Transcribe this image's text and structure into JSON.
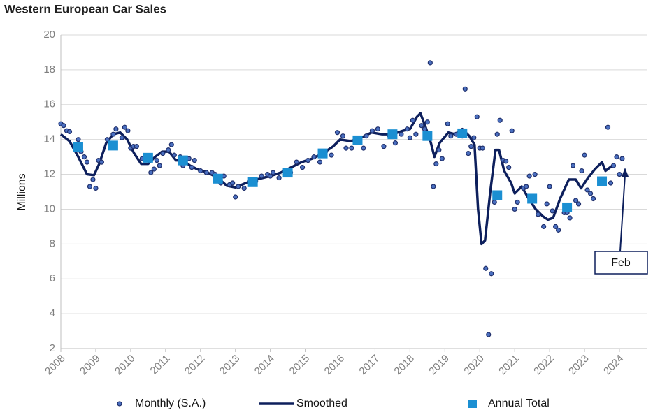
{
  "chart_data": {
    "type": "line",
    "title": "Western European Car Sales",
    "y_label": "Millions",
    "annotation": "Feb",
    "xlim": [
      2008,
      2024
    ],
    "xticks": [
      2008,
      2009,
      2010,
      2011,
      2012,
      2013,
      2014,
      2015,
      2016,
      2017,
      2018,
      2019,
      2020,
      2021,
      2022,
      2023,
      2024
    ],
    "ylim": [
      2,
      20
    ],
    "yticks": [
      2,
      4,
      6,
      8,
      10,
      12,
      14,
      16,
      18,
      20
    ],
    "grid": true,
    "series": [
      {
        "name": "Monthly (S.A.)",
        "style": "scatter",
        "color": "#4a6fc0",
        "x": [
          2008.0,
          2008.08,
          2008.17,
          2008.25,
          2008.42,
          2008.5,
          2008.58,
          2008.67,
          2008.75,
          2008.83,
          2008.92,
          2009.0,
          2009.08,
          2009.17,
          2009.33,
          2009.5,
          2009.58,
          2009.75,
          2009.83,
          2009.92,
          2010.0,
          2010.08,
          2010.17,
          2010.33,
          2010.5,
          2010.58,
          2010.67,
          2010.75,
          2010.83,
          2010.92,
          2011.08,
          2011.17,
          2011.25,
          2011.42,
          2011.5,
          2011.67,
          2011.75,
          2011.83,
          2012.0,
          2012.17,
          2012.33,
          2012.42,
          2012.58,
          2012.67,
          2012.83,
          2012.92,
          2013.0,
          2013.08,
          2013.25,
          2013.42,
          2013.58,
          2013.75,
          2013.92,
          2014.0,
          2014.08,
          2014.25,
          2014.42,
          2014.58,
          2014.75,
          2014.92,
          2015.08,
          2015.25,
          2015.42,
          2015.58,
          2015.75,
          2015.92,
          2016.08,
          2016.17,
          2016.33,
          2016.5,
          2016.67,
          2016.75,
          2016.92,
          2017.08,
          2017.25,
          2017.42,
          2017.58,
          2017.75,
          2017.92,
          2018.0,
          2018.08,
          2018.17,
          2018.33,
          2018.42,
          2018.5,
          2018.58,
          2018.67,
          2018.75,
          2018.83,
          2018.92,
          2019.08,
          2019.17,
          2019.33,
          2019.5,
          2019.58,
          2019.67,
          2019.75,
          2019.83,
          2019.92,
          2020.0,
          2020.08,
          2020.17,
          2020.25,
          2020.33,
          2020.42,
          2020.5,
          2020.58,
          2020.67,
          2020.75,
          2020.83,
          2020.92,
          2021.0,
          2021.08,
          2021.25,
          2021.33,
          2021.42,
          2021.58,
          2021.67,
          2021.83,
          2021.92,
          2022.0,
          2022.08,
          2022.17,
          2022.25,
          2022.42,
          2022.5,
          2022.58,
          2022.67,
          2022.75,
          2022.83,
          2022.92,
          2023.0,
          2023.08,
          2023.17,
          2023.25,
          2023.67,
          2023.75,
          2023.83,
          2023.92,
          2024.0,
          2024.08
        ],
        "values": [
          14.9,
          14.8,
          14.5,
          14.45,
          13.6,
          14.0,
          13.3,
          13.0,
          12.7,
          11.3,
          11.7,
          11.2,
          12.8,
          12.7,
          14.0,
          14.3,
          14.6,
          14.1,
          14.7,
          14.5,
          13.5,
          13.6,
          13.6,
          12.9,
          13.0,
          12.1,
          12.3,
          12.8,
          12.5,
          13.2,
          13.4,
          13.7,
          13.1,
          13.0,
          12.5,
          12.9,
          12.4,
          12.8,
          12.2,
          12.1,
          12.1,
          12.0,
          11.5,
          11.9,
          11.4,
          11.5,
          10.7,
          11.3,
          11.2,
          11.6,
          11.6,
          11.9,
          12.0,
          11.9,
          12.1,
          11.8,
          12.2,
          12.1,
          12.7,
          12.4,
          12.8,
          13.0,
          12.7,
          13.3,
          13.1,
          14.4,
          14.2,
          13.5,
          13.5,
          14.0,
          13.5,
          14.2,
          14.5,
          14.6,
          13.6,
          14.2,
          13.8,
          14.3,
          14.6,
          14.1,
          15.1,
          14.3,
          14.8,
          14.6,
          15.0,
          18.4,
          11.3,
          12.6,
          13.4,
          12.9,
          14.9,
          14.2,
          14.3,
          14.2,
          16.9,
          13.2,
          13.6,
          14.1,
          15.3,
          13.5,
          13.5,
          6.6,
          2.8,
          6.3,
          10.4,
          14.3,
          15.1,
          12.8,
          12.75,
          12.4,
          14.5,
          10.0,
          10.4,
          11.2,
          11.3,
          11.9,
          12.0,
          9.7,
          9.0,
          10.3,
          11.3,
          9.9,
          9.0,
          8.8,
          9.8,
          9.8,
          9.5,
          12.5,
          10.5,
          10.3,
          12.2,
          13.1,
          11.1,
          10.9,
          10.6,
          14.7,
          11.5,
          12.5,
          13.0,
          12.0,
          12.9
        ]
      },
      {
        "name": "Smoothed",
        "style": "line",
        "color": "#0d1f5c",
        "x": [
          2008.0,
          2008.25,
          2008.5,
          2008.75,
          2008.95,
          2009.1,
          2009.3,
          2009.5,
          2009.7,
          2009.9,
          2010.1,
          2010.3,
          2010.5,
          2010.7,
          2010.9,
          2011.1,
          2011.3,
          2011.5,
          2011.7,
          2011.9,
          2012.2,
          2012.5,
          2012.75,
          2013.0,
          2013.3,
          2013.6,
          2014.0,
          2014.3,
          2014.6,
          2014.9,
          2015.2,
          2015.5,
          2015.8,
          2016.0,
          2016.3,
          2016.6,
          2016.9,
          2017.2,
          2017.5,
          2017.8,
          2018.0,
          2018.2,
          2018.3,
          2018.45,
          2018.6,
          2018.7,
          2018.85,
          2019.1,
          2019.3,
          2019.5,
          2019.7,
          2019.85,
          2019.95,
          2020.05,
          2020.15,
          2020.3,
          2020.45,
          2020.55,
          2020.7,
          2020.9,
          2021.0,
          2021.2,
          2021.4,
          2021.6,
          2021.8,
          2021.95,
          2022.1,
          2022.3,
          2022.55,
          2022.75,
          2022.9,
          2023.1,
          2023.3,
          2023.5,
          2023.6,
          2023.8
        ],
        "values": [
          14.3,
          13.9,
          13.0,
          12.0,
          11.95,
          12.6,
          13.8,
          14.3,
          14.4,
          14.0,
          13.2,
          12.6,
          12.6,
          13.0,
          13.3,
          13.3,
          12.8,
          12.8,
          12.5,
          12.3,
          12.1,
          11.8,
          11.35,
          11.25,
          11.5,
          11.7,
          11.9,
          12.1,
          12.4,
          12.7,
          12.9,
          13.2,
          13.6,
          14.0,
          13.9,
          14.1,
          14.4,
          14.3,
          14.3,
          14.5,
          14.6,
          15.3,
          15.5,
          14.7,
          13.8,
          13.0,
          13.8,
          14.4,
          14.3,
          14.6,
          14.2,
          13.7,
          10.0,
          8.0,
          8.2,
          11.0,
          13.4,
          13.4,
          12.2,
          11.5,
          10.9,
          11.3,
          10.6,
          10.0,
          9.6,
          9.4,
          9.5,
          10.6,
          11.7,
          11.7,
          11.2,
          11.8,
          12.3,
          12.7,
          12.2,
          12.5
        ]
      },
      {
        "name": "Annual Total",
        "style": "square",
        "color": "#1b8fd2",
        "x": [
          2008.5,
          2009.5,
          2010.5,
          2011.5,
          2012.5,
          2013.5,
          2014.5,
          2015.5,
          2016.5,
          2017.5,
          2018.5,
          2019.5,
          2020.5,
          2021.5,
          2022.5,
          2023.5
        ],
        "values": [
          13.55,
          13.65,
          12.95,
          12.8,
          11.75,
          11.55,
          12.1,
          13.2,
          13.95,
          14.3,
          14.2,
          14.35,
          10.8,
          10.6,
          10.1,
          11.6
        ]
      }
    ]
  }
}
